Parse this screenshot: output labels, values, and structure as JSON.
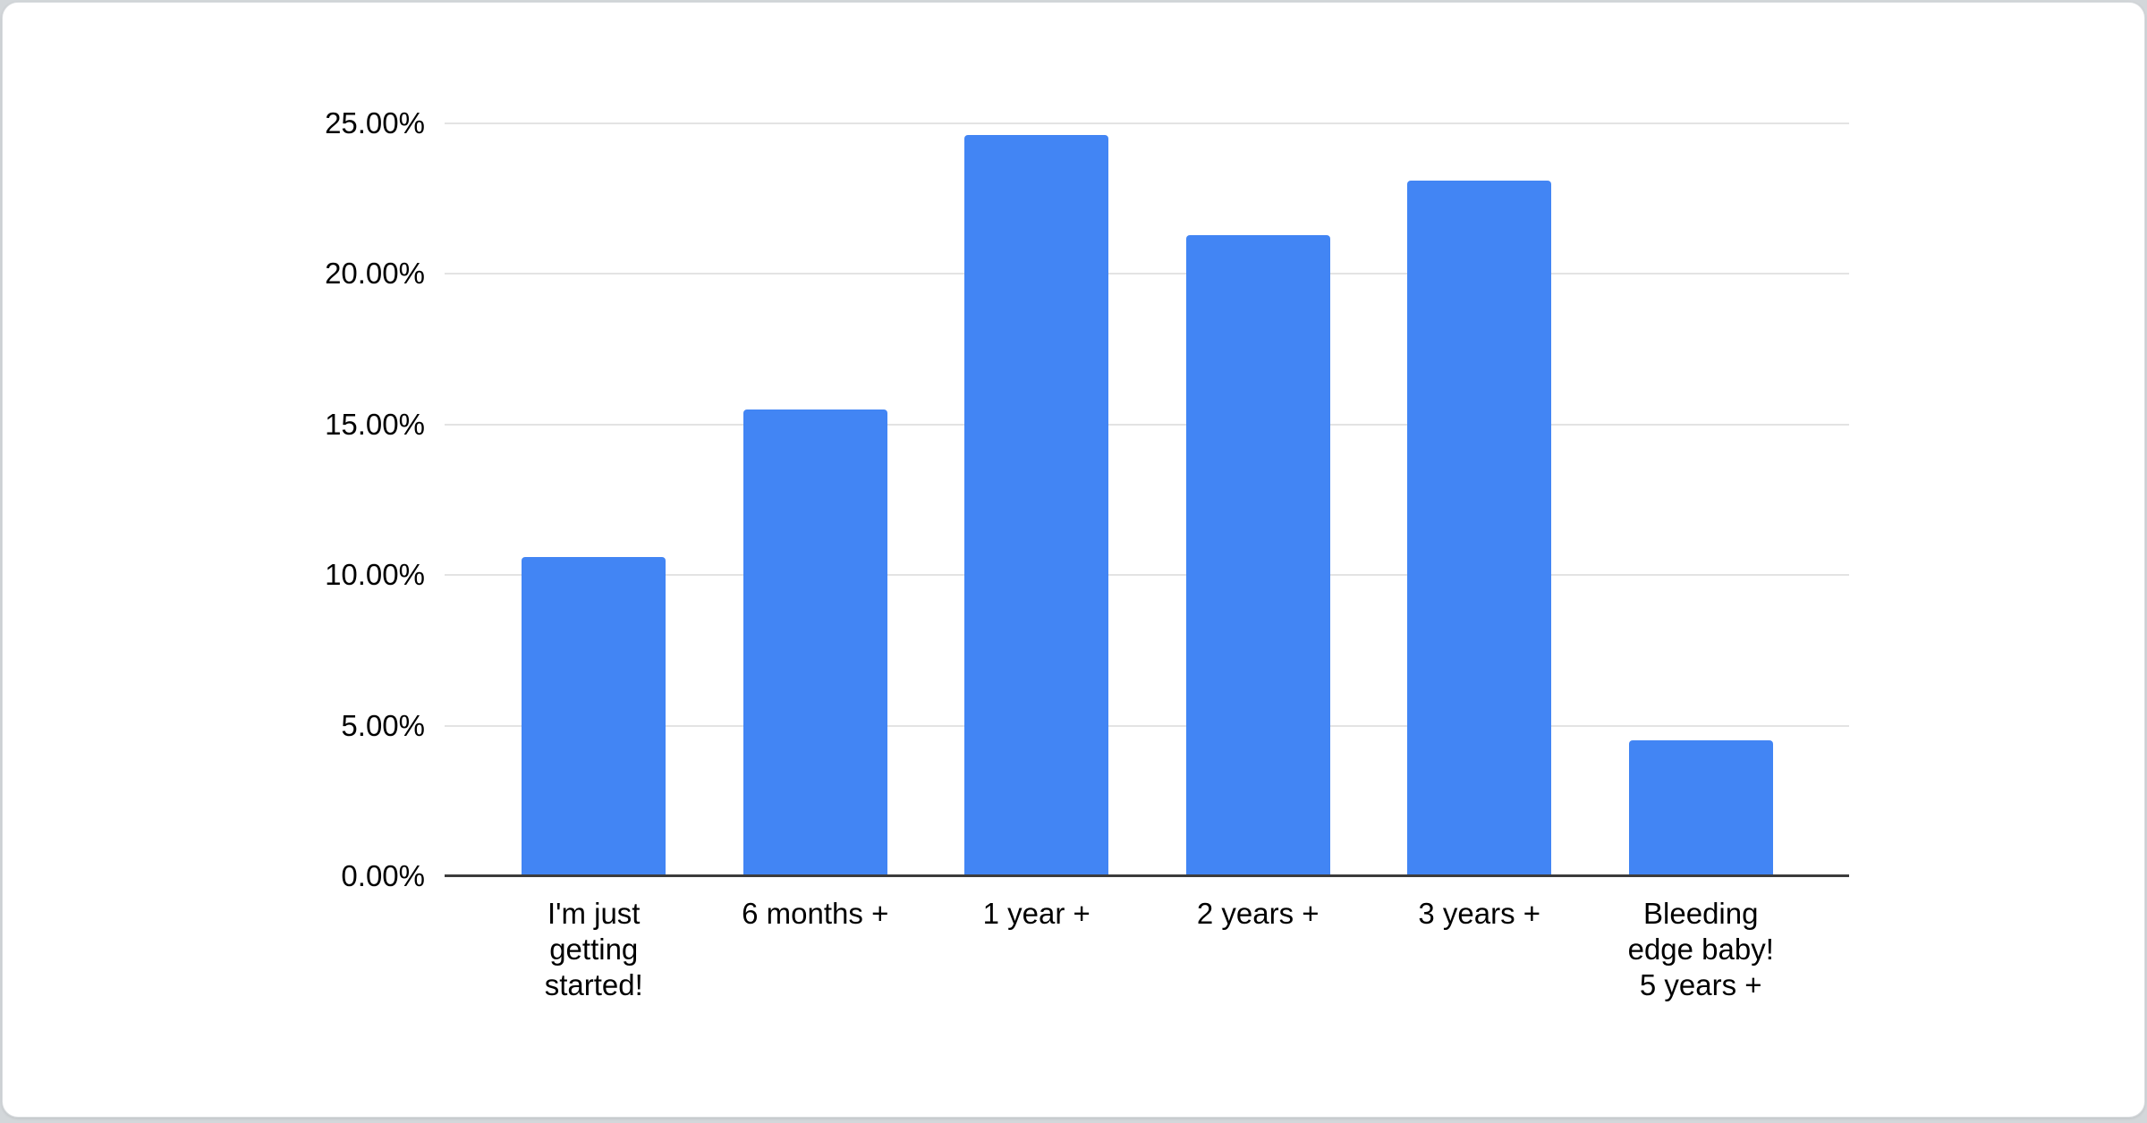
{
  "page": {
    "background_color": "#d3d7da",
    "card_background": "#ffffff",
    "card_border_color": "#d9dcdf"
  },
  "chart_data": {
    "type": "bar",
    "title": "",
    "xlabel": "",
    "ylabel": "",
    "categories": [
      "I'm just getting started!",
      "6 months +",
      "1 year +",
      "2 years +",
      "3 years +",
      "Bleeding edge baby! 5 years +"
    ],
    "category_display_lines": [
      [
        "I'm just",
        "getting",
        "started!"
      ],
      [
        "6 months +"
      ],
      [
        "1 year +"
      ],
      [
        "2 years +"
      ],
      [
        "3 years +"
      ],
      [
        "Bleeding",
        "edge baby!",
        "5 years +"
      ]
    ],
    "values": [
      10.6,
      15.5,
      24.6,
      21.3,
      23.1,
      4.5
    ],
    "value_unit": "%",
    "ylim": [
      0,
      25
    ],
    "y_ticks": [
      {
        "value": 0,
        "label": "0.00%"
      },
      {
        "value": 5,
        "label": "5.00%"
      },
      {
        "value": 10,
        "label": "10.00%"
      },
      {
        "value": 15,
        "label": "15.00%"
      },
      {
        "value": 20,
        "label": "20.00%"
      },
      {
        "value": 25,
        "label": "25.00%"
      }
    ],
    "grid": true,
    "legend": "none",
    "colors": {
      "bar": "#4285f4",
      "gridline": "#e3e3e3",
      "axis_line": "#3c3c3c",
      "text": "#000000"
    }
  }
}
